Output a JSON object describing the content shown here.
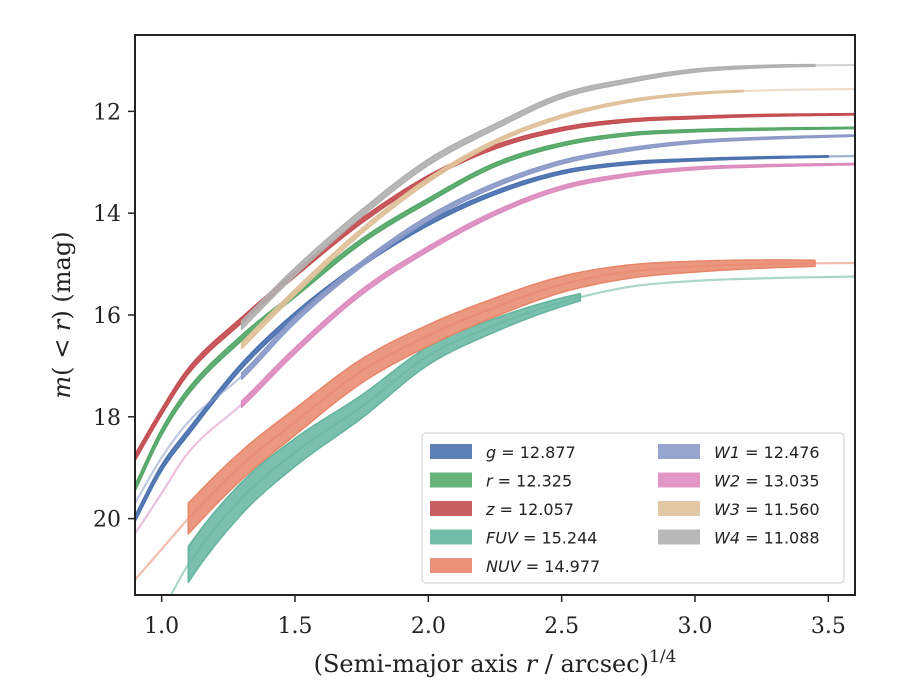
{
  "chart_data": {
    "type": "line",
    "xlabel": "(Semi-major axis r / arcsec)",
    "xlabel_parts": {
      "prefix": "(Semi-major axis ",
      "var": "r",
      "suffix": " / arcsec)",
      "exponent": "1/4"
    },
    "ylabel": "m(< r) (mag)",
    "ylabel_parts": {
      "m": "m",
      "open": "(",
      "lt": " < ",
      "r": "r",
      "close": ")",
      "unit": " (mag)"
    },
    "xlim": [
      0.9,
      3.6
    ],
    "ylim": [
      21.5,
      10.5
    ],
    "y_inverted": true,
    "x_ticks": [
      1.0,
      1.5,
      2.0,
      2.5,
      3.0,
      3.5
    ],
    "x_tick_labels": [
      "1.0",
      "1.5",
      "2.0",
      "2.5",
      "3.0",
      "3.5"
    ],
    "y_ticks": [
      12,
      14,
      16,
      18,
      20
    ],
    "y_tick_labels": [
      "12",
      "14",
      "16",
      "18",
      "20"
    ],
    "grid": false,
    "legend_position": "bottom-right",
    "legend_columns": 2,
    "series": [
      {
        "name": "g",
        "legend_label": "g = 12.877",
        "color": "#4c72b0",
        "band_width": 0.06,
        "solid_x_range": [
          0.9,
          3.5
        ],
        "points": [
          [
            0.9,
            20.0
          ],
          [
            1.0,
            19.0
          ],
          [
            1.1,
            18.3
          ],
          [
            1.3,
            17.0
          ],
          [
            1.5,
            16.0
          ],
          [
            1.75,
            15.0
          ],
          [
            2.0,
            14.2
          ],
          [
            2.25,
            13.6
          ],
          [
            2.5,
            13.2
          ],
          [
            2.75,
            13.02
          ],
          [
            3.0,
            12.95
          ],
          [
            3.25,
            12.91
          ],
          [
            3.6,
            12.877
          ]
        ]
      },
      {
        "name": "r",
        "legend_label": "r = 12.325",
        "color": "#55a868",
        "band_width": 0.06,
        "solid_x_range": [
          0.9,
          3.6
        ],
        "points": [
          [
            0.9,
            19.4
          ],
          [
            1.0,
            18.3
          ],
          [
            1.1,
            17.5
          ],
          [
            1.3,
            16.45
          ],
          [
            1.5,
            15.6
          ],
          [
            1.75,
            14.55
          ],
          [
            2.0,
            13.75
          ],
          [
            2.25,
            13.05
          ],
          [
            2.5,
            12.65
          ],
          [
            2.75,
            12.45
          ],
          [
            3.0,
            12.38
          ],
          [
            3.25,
            12.35
          ],
          [
            3.6,
            12.325
          ]
        ]
      },
      {
        "name": "z",
        "legend_label": "z = 12.057",
        "color": "#c44e52",
        "band_width": 0.06,
        "solid_x_range": [
          0.9,
          3.6
        ],
        "points": [
          [
            0.9,
            18.8
          ],
          [
            1.0,
            17.9
          ],
          [
            1.1,
            17.1
          ],
          [
            1.3,
            16.1
          ],
          [
            1.5,
            15.2
          ],
          [
            1.75,
            14.15
          ],
          [
            2.0,
            13.3
          ],
          [
            2.25,
            12.7
          ],
          [
            2.5,
            12.35
          ],
          [
            2.75,
            12.18
          ],
          [
            3.0,
            12.12
          ],
          [
            3.25,
            12.08
          ],
          [
            3.6,
            12.057
          ]
        ]
      },
      {
        "name": "FUV",
        "legend_label": "FUV = 15.244",
        "color": "#64b5a0",
        "band_width": 0.35,
        "solid_x_range": [
          1.1,
          2.57
        ],
        "points": [
          [
            0.9,
            22.4
          ],
          [
            1.0,
            21.8
          ],
          [
            1.1,
            20.9
          ],
          [
            1.3,
            19.6
          ],
          [
            1.5,
            18.7
          ],
          [
            1.75,
            17.8
          ],
          [
            2.0,
            16.8
          ],
          [
            2.25,
            16.2
          ],
          [
            2.5,
            15.75
          ],
          [
            2.75,
            15.45
          ],
          [
            3.0,
            15.33
          ],
          [
            3.25,
            15.28
          ],
          [
            3.6,
            15.244
          ]
        ]
      },
      {
        "name": "NUV",
        "legend_label": "NUV = 14.977",
        "color": "#e8866a",
        "band_width": 0.3,
        "solid_x_range": [
          1.1,
          3.45
        ],
        "points": [
          [
            0.9,
            21.2
          ],
          [
            1.0,
            20.6
          ],
          [
            1.1,
            20.0
          ],
          [
            1.3,
            18.95
          ],
          [
            1.5,
            18.1
          ],
          [
            1.75,
            17.1
          ],
          [
            2.0,
            16.4
          ],
          [
            2.25,
            15.85
          ],
          [
            2.5,
            15.4
          ],
          [
            2.75,
            15.15
          ],
          [
            3.0,
            15.05
          ],
          [
            3.25,
            15.0
          ],
          [
            3.6,
            14.977
          ]
        ]
      },
      {
        "name": "W1",
        "legend_label": "W1 = 12.476",
        "color": "#8c9ac8",
        "band_width": 0.06,
        "solid_x_range": [
          1.3,
          3.6
        ],
        "points": [
          [
            0.9,
            19.7
          ],
          [
            1.0,
            18.8
          ],
          [
            1.1,
            18.1
          ],
          [
            1.3,
            17.2
          ],
          [
            1.5,
            16.1
          ],
          [
            1.75,
            15.0
          ],
          [
            2.0,
            14.1
          ],
          [
            2.25,
            13.45
          ],
          [
            2.5,
            13.0
          ],
          [
            2.75,
            12.75
          ],
          [
            3.0,
            12.6
          ],
          [
            3.25,
            12.53
          ],
          [
            3.6,
            12.476
          ]
        ]
      },
      {
        "name": "W2",
        "legend_label": "W2 = 13.035",
        "color": "#dd8cc0",
        "band_width": 0.06,
        "solid_x_range": [
          1.3,
          3.6
        ],
        "points": [
          [
            0.9,
            20.3
          ],
          [
            1.0,
            19.5
          ],
          [
            1.1,
            18.7
          ],
          [
            1.3,
            17.75
          ],
          [
            1.5,
            16.7
          ],
          [
            1.75,
            15.55
          ],
          [
            2.0,
            14.7
          ],
          [
            2.25,
            14.0
          ],
          [
            2.5,
            13.5
          ],
          [
            2.75,
            13.25
          ],
          [
            3.0,
            13.12
          ],
          [
            3.25,
            13.07
          ],
          [
            3.6,
            13.035
          ]
        ]
      },
      {
        "name": "W3",
        "legend_label": "W3 = 11.560",
        "color": "#dfc19a",
        "band_width": 0.06,
        "solid_x_range": [
          1.3,
          3.18
        ],
        "points": [
          [
            1.3,
            16.6
          ],
          [
            1.5,
            15.55
          ],
          [
            1.75,
            14.35
          ],
          [
            2.0,
            13.35
          ],
          [
            2.25,
            12.6
          ],
          [
            2.5,
            12.1
          ],
          [
            2.75,
            11.8
          ],
          [
            3.0,
            11.65
          ],
          [
            3.25,
            11.59
          ],
          [
            3.6,
            11.56
          ]
        ]
      },
      {
        "name": "W4",
        "legend_label": "W4 = 11.088",
        "color": "#b0b0b0",
        "band_width": 0.08,
        "solid_x_range": [
          1.3,
          3.45
        ],
        "points": [
          [
            1.3,
            16.2
          ],
          [
            1.5,
            15.15
          ],
          [
            1.75,
            14.0
          ],
          [
            2.0,
            13.0
          ],
          [
            2.25,
            12.3
          ],
          [
            2.5,
            11.7
          ],
          [
            2.75,
            11.4
          ],
          [
            3.0,
            11.2
          ],
          [
            3.25,
            11.12
          ],
          [
            3.6,
            11.088
          ]
        ]
      }
    ]
  }
}
